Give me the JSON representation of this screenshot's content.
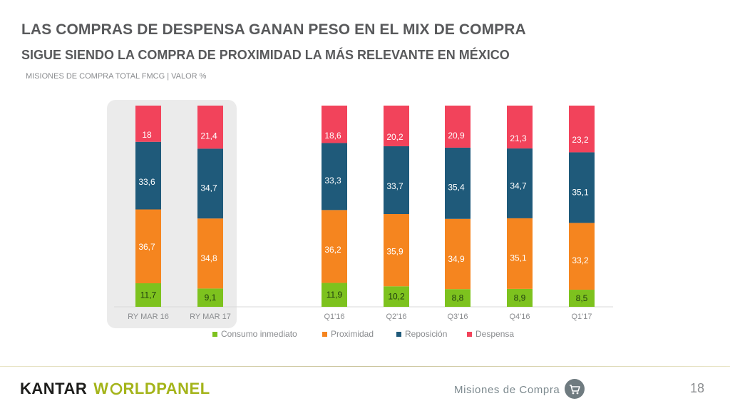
{
  "header": {
    "title": "LAS COMPRAS DE DESPENSA GANAN PESO EN EL MIX DE COMPRA",
    "subtitle": "SIGUE SIENDO LA COMPRA DE PROXIMIDAD LA MÁS RELEVANTE EN MÉXICO",
    "caption": "MISIONES DE COMPRA TOTAL FMCG | VALOR %"
  },
  "chart_data": {
    "type": "bar",
    "stacked": true,
    "percent": true,
    "categories": [
      "RY MAR 16",
      "RY MAR 17",
      "Q1'16",
      "Q2'16",
      "Q3'16",
      "Q4'16",
      "Q1'17"
    ],
    "highlighted_categories": [
      "RY MAR 16",
      "RY MAR 17"
    ],
    "series": [
      {
        "name": "Consumo inmediato",
        "color": "#7dc21e",
        "values": [
          11.7,
          9.1,
          11.9,
          10.2,
          8.8,
          8.9,
          8.5
        ]
      },
      {
        "name": "Proximidad",
        "color": "#f5851f",
        "values": [
          36.7,
          34.8,
          36.2,
          35.9,
          34.9,
          35.1,
          33.2
        ]
      },
      {
        "name": "Reposición",
        "color": "#1f5a7a",
        "values": [
          33.6,
          34.7,
          33.3,
          33.7,
          35.4,
          34.7,
          35.1
        ]
      },
      {
        "name": "Despensa",
        "color": "#f2435b",
        "values": [
          18,
          21.4,
          18.6,
          20.2,
          20.9,
          21.3,
          23.2
        ]
      }
    ],
    "data_labels": [
      [
        "11,7",
        "9,1",
        "11,9",
        "10,2",
        "8,8",
        "8,9",
        "8,5"
      ],
      [
        "36,7",
        "34,8",
        "36,2",
        "35,9",
        "34,9",
        "35,1",
        "33,2"
      ],
      [
        "33,6",
        "34,7",
        "33,3",
        "33,7",
        "35,4",
        "34,7",
        "35,1"
      ],
      [
        "18",
        "21,4",
        "18,6",
        "20,2",
        "20,9",
        "21,3",
        "23,2"
      ]
    ],
    "ylim": [
      0,
      100
    ],
    "legend_position": "bottom"
  },
  "footer": {
    "brand_left": "KANTAR",
    "brand_right_prefix": "W",
    "brand_right_suffix": "RLDPANEL",
    "section": "Misiones de Compra",
    "page_number": "18"
  }
}
